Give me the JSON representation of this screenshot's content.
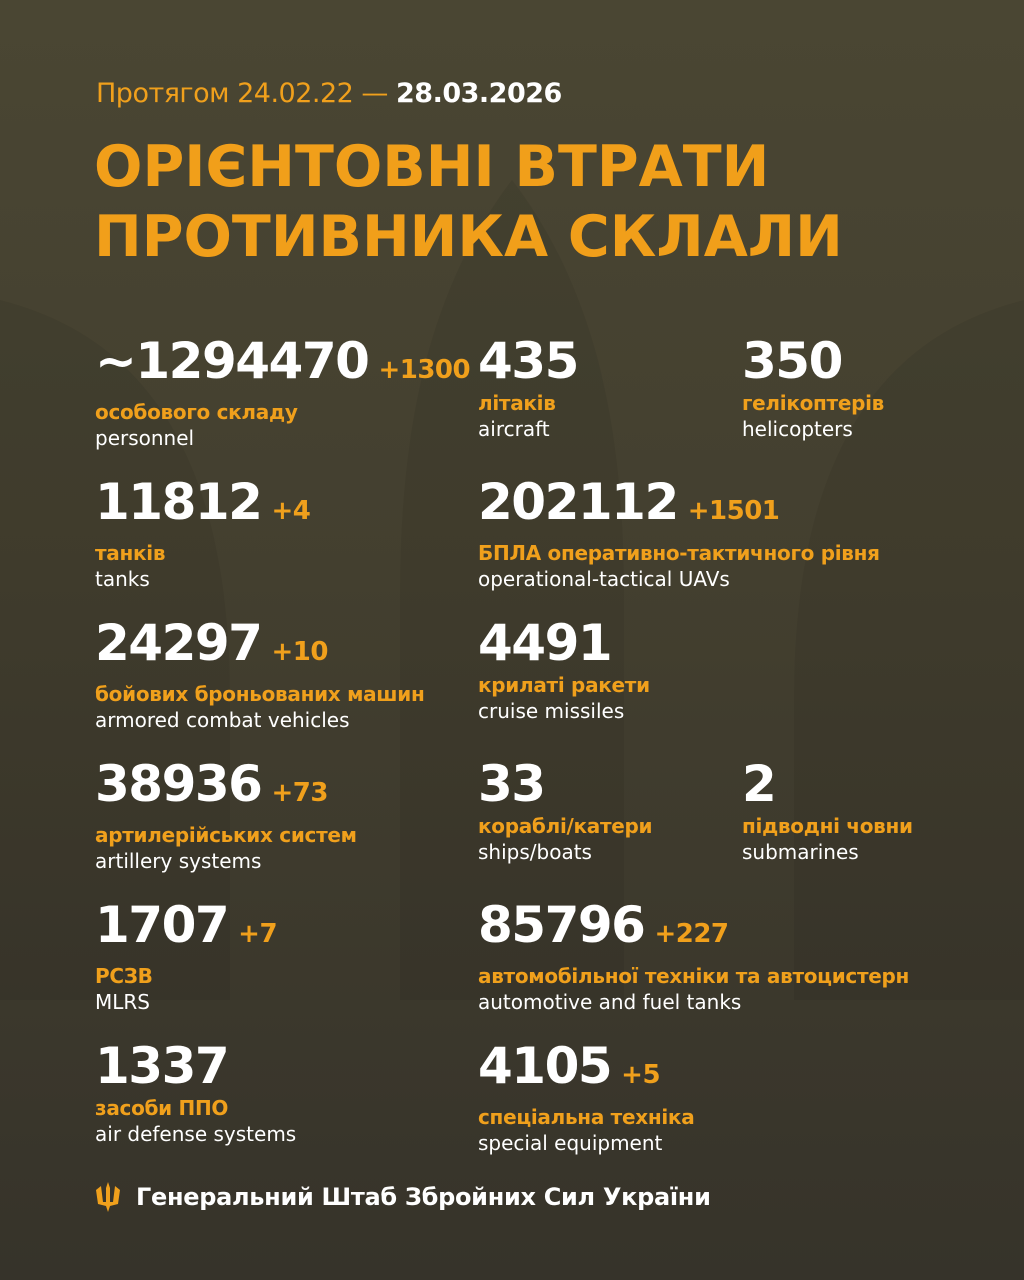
{
  "header": {
    "period_prefix": "Протягом 24.02.22 —",
    "period_end": "28.03.2026",
    "title_line1": "ОРІЄНТОВНІ ВТРАТИ",
    "title_line2": "ПРОТИВНИКА СКЛАЛИ"
  },
  "colors": {
    "accent": "#f0a01c",
    "background": "#45412f",
    "text": "#ffffff"
  },
  "stats": [
    {
      "value": "~1294470",
      "delta": "+1300",
      "ua": "особового складу",
      "en": "personnel"
    },
    {
      "value": "435",
      "delta": "",
      "ua": "літаків",
      "en": "aircraft"
    },
    {
      "value": "350",
      "delta": "",
      "ua": "гелікоптерів",
      "en": "helicopters"
    },
    {
      "value": "11812",
      "delta": "+4",
      "ua": "танків",
      "en": "tanks"
    },
    {
      "value": "202112",
      "delta": "+1501",
      "ua": "БПЛА оперативно-тактичного рівня",
      "en": "operational-tactical UAVs"
    },
    {
      "value": "24297",
      "delta": "+10",
      "ua": "бойових броньованих машин",
      "en": "armored combat vehicles"
    },
    {
      "value": "4491",
      "delta": "",
      "ua": "крилаті ракети",
      "en": "cruise missiles"
    },
    {
      "value": "38936",
      "delta": "+73",
      "ua": "артилерійських систем",
      "en": "artillery systems"
    },
    {
      "value": "33",
      "delta": "",
      "ua": "кораблі/катери",
      "en": "ships/boats"
    },
    {
      "value": "2",
      "delta": "",
      "ua": "підводні човни",
      "en": "submarines"
    },
    {
      "value": "1707",
      "delta": "+7",
      "ua": "РСЗВ",
      "en": "MLRS"
    },
    {
      "value": "85796",
      "delta": "+227",
      "ua": "автомобільної техніки та автоцистерн",
      "en": "automotive and fuel tanks"
    },
    {
      "value": "1337",
      "delta": "",
      "ua": "засоби ППО",
      "en": "air defense systems"
    },
    {
      "value": "4105",
      "delta": "+5",
      "ua": "спеціальна техніка",
      "en": "special equipment"
    }
  ],
  "footer": {
    "text": "Генеральний Штаб Збройних Сил України",
    "icon": "trident-icon"
  }
}
